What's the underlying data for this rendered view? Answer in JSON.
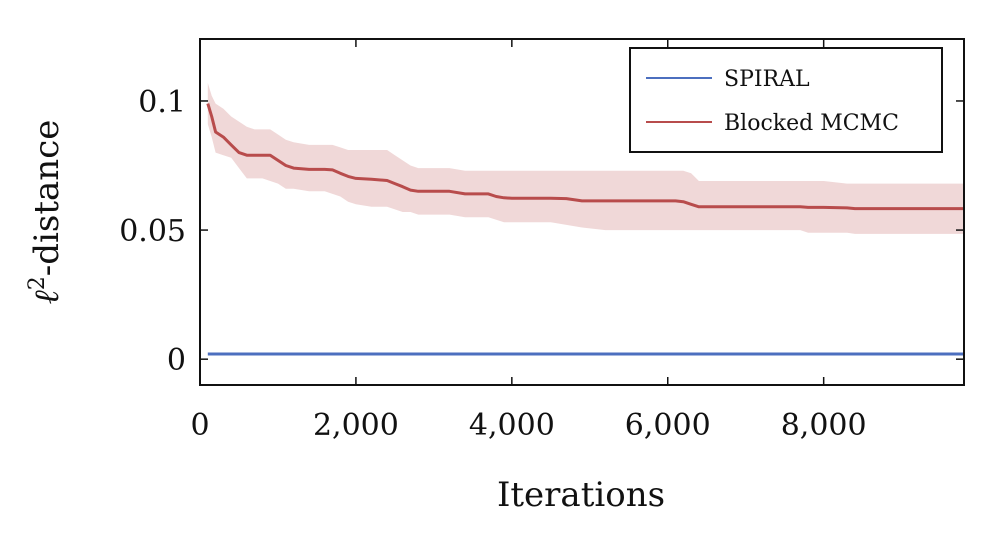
{
  "chart_data": {
    "type": "line",
    "title": "",
    "xlabel": "Iterations",
    "ylabel_main": "ℓ",
    "ylabel_sup": "2",
    "ylabel_rest": "-distance",
    "xlim": [
      0,
      9800
    ],
    "ylim": [
      -0.01,
      0.124
    ],
    "xticks": [
      0,
      2000,
      4000,
      6000,
      8000
    ],
    "xtick_labels": [
      "0",
      "2,000",
      "4,000",
      "6,000",
      "8,000"
    ],
    "yticks": [
      0,
      0.05,
      0.1
    ],
    "ytick_labels": [
      "0",
      "0.05",
      "0.1"
    ],
    "grid": false,
    "legend_position": "top-right",
    "series": [
      {
        "name": "SPIRAL",
        "color": "#4c6fbf",
        "x": [
          100,
          9800
        ],
        "y": [
          0.002,
          0.002
        ]
      },
      {
        "name": "Blocked MCMC",
        "color": "#b84c4c",
        "band_color": "#f0d8d8",
        "x": [
          100,
          150,
          200,
          300,
          400,
          500,
          600,
          700,
          800,
          900,
          1000,
          1100,
          1200,
          1400,
          1600,
          1700,
          1800,
          1900,
          2000,
          2200,
          2400,
          2500,
          2600,
          2700,
          2800,
          3000,
          3200,
          3400,
          3500,
          3700,
          3800,
          3900,
          4000,
          4200,
          4500,
          4700,
          4900,
          5200,
          5500,
          5800,
          6100,
          6200,
          6300,
          6400,
          6600,
          7000,
          7400,
          7700,
          7800,
          8000,
          8300,
          8400,
          8600,
          9000,
          9400,
          9800
        ],
        "y": [
          0.099,
          0.094,
          0.088,
          0.086,
          0.083,
          0.08,
          0.079,
          0.079,
          0.079,
          0.079,
          0.077,
          0.075,
          0.074,
          0.0735,
          0.0735,
          0.0733,
          0.072,
          0.0708,
          0.07,
          0.0697,
          0.0692,
          0.068,
          0.0668,
          0.0655,
          0.065,
          0.065,
          0.065,
          0.064,
          0.064,
          0.064,
          0.063,
          0.0625,
          0.0623,
          0.0623,
          0.0623,
          0.0622,
          0.0613,
          0.0613,
          0.0613,
          0.0613,
          0.0613,
          0.061,
          0.06,
          0.059,
          0.059,
          0.059,
          0.059,
          0.059,
          0.0588,
          0.0588,
          0.0586,
          0.0583,
          0.0583,
          0.0583,
          0.0583,
          0.0583
        ],
        "lower": [
          0.091,
          0.086,
          0.08,
          0.079,
          0.078,
          0.074,
          0.07,
          0.07,
          0.07,
          0.069,
          0.068,
          0.066,
          0.066,
          0.065,
          0.065,
          0.064,
          0.063,
          0.061,
          0.06,
          0.059,
          0.059,
          0.058,
          0.057,
          0.057,
          0.056,
          0.056,
          0.056,
          0.055,
          0.055,
          0.055,
          0.054,
          0.053,
          0.053,
          0.053,
          0.053,
          0.052,
          0.051,
          0.05,
          0.05,
          0.05,
          0.05,
          0.05,
          0.05,
          0.05,
          0.05,
          0.05,
          0.05,
          0.05,
          0.049,
          0.049,
          0.049,
          0.0485,
          0.0485,
          0.0485,
          0.0485,
          0.0485
        ],
        "upper": [
          0.107,
          0.102,
          0.099,
          0.097,
          0.094,
          0.092,
          0.09,
          0.089,
          0.089,
          0.089,
          0.087,
          0.085,
          0.084,
          0.083,
          0.083,
          0.083,
          0.082,
          0.081,
          0.081,
          0.081,
          0.081,
          0.079,
          0.077,
          0.075,
          0.074,
          0.074,
          0.074,
          0.073,
          0.073,
          0.073,
          0.073,
          0.073,
          0.073,
          0.073,
          0.073,
          0.073,
          0.073,
          0.073,
          0.073,
          0.073,
          0.073,
          0.073,
          0.072,
          0.069,
          0.069,
          0.069,
          0.069,
          0.069,
          0.069,
          0.069,
          0.068,
          0.068,
          0.068,
          0.068,
          0.068,
          0.068
        ]
      }
    ]
  }
}
